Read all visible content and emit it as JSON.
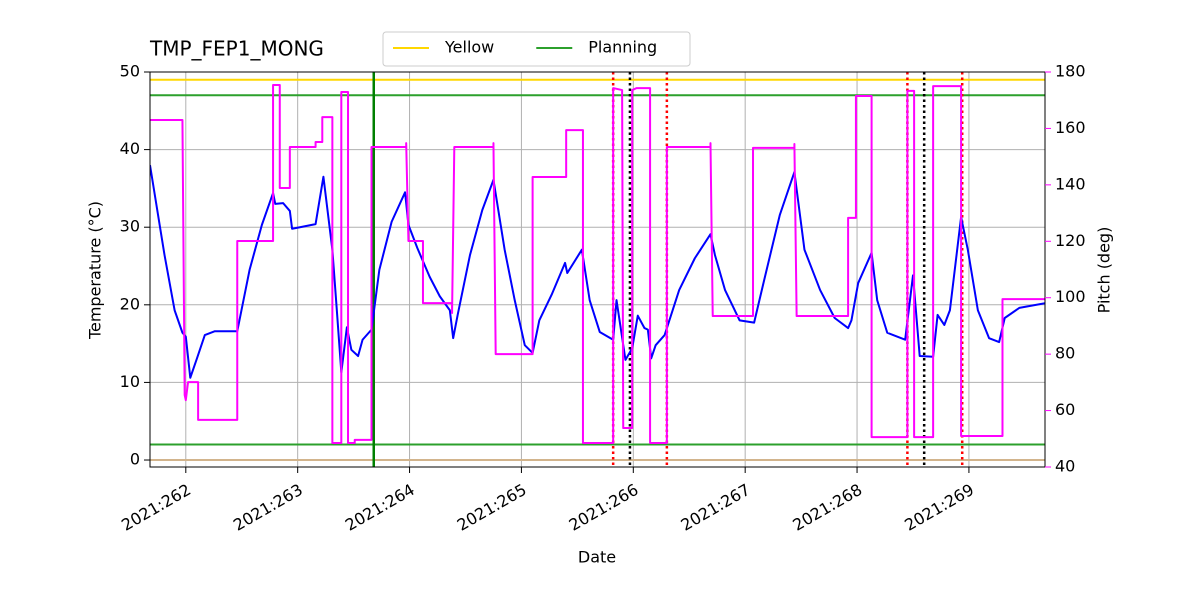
{
  "chart_data": {
    "type": "line",
    "title": "TMP_FEP1_MONG",
    "xlabel": "Date",
    "ylabel": "Temperature (°C)",
    "y2label": "Pitch (deg)",
    "y2color": "#ff00ff",
    "grid": true,
    "legend": "upper center",
    "xlim": [
      261.68,
      269.68
    ],
    "xticks": [
      {
        "value": 262,
        "label": "2021:262"
      },
      {
        "value": 263,
        "label": "2021:263"
      },
      {
        "value": 264,
        "label": "2021:264"
      },
      {
        "value": 265,
        "label": "2021:265"
      },
      {
        "value": 266,
        "label": "2021:266"
      },
      {
        "value": 267,
        "label": "2021:267"
      },
      {
        "value": 268,
        "label": "2021:268"
      },
      {
        "value": 269,
        "label": "2021:269"
      }
    ],
    "ylim": [
      -0.9,
      50
    ],
    "yticks": [
      0,
      10,
      20,
      30,
      40,
      50
    ],
    "y2lim": [
      40,
      180
    ],
    "y2ticks": [
      40,
      60,
      80,
      100,
      120,
      140,
      160,
      180
    ],
    "hlines": [
      {
        "value": 49,
        "color": "#ffd700",
        "name": "Yellow"
      },
      {
        "value": 47,
        "color": "#2ca02c",
        "name": "Planning"
      },
      {
        "value": 2,
        "color": "#2ca02c"
      },
      {
        "value": 0,
        "color": "#d2b48c"
      }
    ],
    "vlines": [
      {
        "x": 263.68,
        "color": "#008000",
        "style": "solid"
      },
      {
        "x": 265.82,
        "color": "#ff0000",
        "style": "dotted"
      },
      {
        "x": 265.97,
        "color": "#000000",
        "style": "dotted"
      },
      {
        "x": 266.3,
        "color": "#ff0000",
        "style": "dotted"
      },
      {
        "x": 268.45,
        "color": "#ff0000",
        "style": "dotted"
      },
      {
        "x": 268.6,
        "color": "#000000",
        "style": "dotted"
      },
      {
        "x": 268.94,
        "color": "#ff0000",
        "style": "dotted"
      }
    ],
    "series": [
      {
        "color": "#0000ff",
        "x": [
          261.68,
          261.81,
          261.9,
          261.97,
          262.0,
          262.04,
          262.1,
          262.17,
          262.26,
          262.46,
          262.57,
          262.68,
          262.78,
          262.8,
          262.87,
          262.93,
          262.95,
          263.02,
          263.16,
          263.23,
          263.31,
          263.35,
          263.39,
          263.44,
          263.48,
          263.54,
          263.58,
          263.66,
          263.73,
          263.84,
          263.96,
          263.99,
          264.07,
          264.18,
          264.27,
          264.36,
          264.39,
          264.43,
          264.54,
          264.65,
          264.75,
          264.85,
          264.94,
          265.03,
          265.1,
          265.16,
          265.27,
          265.39,
          265.41,
          265.54,
          265.61,
          265.7,
          265.82,
          265.85,
          265.93,
          265.99,
          266.04,
          266.1,
          266.13,
          266.16,
          266.2,
          266.28,
          266.41,
          266.55,
          266.69,
          266.73,
          266.82,
          266.95,
          267.08,
          267.17,
          267.31,
          267.44,
          267.53,
          267.67,
          267.8,
          267.92,
          267.95,
          268.01,
          268.13,
          268.18,
          268.27,
          268.43,
          268.5,
          268.56,
          268.68,
          268.72,
          268.78,
          268.83,
          268.93,
          268.99,
          269.08,
          269.18,
          269.27,
          269.32,
          269.45,
          269.68
        ],
        "values": [
          38.0,
          26.4,
          19.3,
          16.4,
          15.9,
          10.6,
          13.1,
          16.1,
          16.6,
          16.6,
          24.5,
          30.3,
          34.4,
          33.0,
          33.1,
          32.1,
          29.8,
          30.0,
          30.4,
          36.5,
          27.1,
          19.3,
          11.3,
          17.1,
          14.2,
          13.4,
          15.5,
          16.8,
          24.5,
          30.7,
          34.5,
          30.3,
          27.3,
          23.6,
          21.1,
          19.3,
          15.7,
          18.7,
          26.4,
          32.2,
          36.1,
          27.1,
          20.6,
          14.8,
          13.8,
          18.0,
          21.3,
          25.4,
          24.1,
          27.1,
          20.6,
          16.5,
          15.5,
          20.6,
          12.9,
          14.4,
          18.6,
          17.0,
          16.8,
          13.1,
          14.8,
          16.1,
          21.9,
          26.0,
          29.1,
          26.4,
          21.9,
          18.0,
          17.7,
          23.2,
          31.6,
          37.1,
          27.1,
          21.9,
          18.3,
          17.0,
          18.0,
          22.8,
          26.7,
          20.6,
          16.4,
          15.5,
          23.8,
          13.4,
          13.3,
          18.7,
          17.4,
          19.3,
          31.3,
          27.1,
          19.3,
          15.7,
          15.2,
          18.3,
          19.6,
          20.2
        ]
      },
      {
        "color": "#ff00ff",
        "axis": "y2",
        "x": [
          261.68,
          261.97,
          261.99,
          262.0,
          262.02,
          262.11,
          262.11,
          262.46,
          262.46,
          262.78,
          262.78,
          262.84,
          262.84,
          262.93,
          262.93,
          263.16,
          263.16,
          263.22,
          263.22,
          263.31,
          263.31,
          263.39,
          263.39,
          263.45,
          263.45,
          263.51,
          263.51,
          263.66,
          263.66,
          263.97,
          263.97,
          263.99,
          264.12,
          264.12,
          264.38,
          264.38,
          264.4,
          264.75,
          264.75,
          264.77,
          265.1,
          265.1,
          265.4,
          265.4,
          265.55,
          265.55,
          265.82,
          265.82,
          265.9,
          265.91,
          265.99,
          265.99,
          266.03,
          266.15,
          266.15,
          266.3,
          266.3,
          266.69,
          266.69,
          266.71,
          267.07,
          267.07,
          267.44,
          267.44,
          267.46,
          267.92,
          267.92,
          267.99,
          267.99,
          268.13,
          268.13,
          268.45,
          268.45,
          268.51,
          268.51,
          268.68,
          268.68,
          268.93,
          268.93,
          269.3,
          269.3,
          269.68
        ],
        "values": [
          163.0,
          163.0,
          65.5,
          63.7,
          70.1,
          70.1,
          56.7,
          56.7,
          120.1,
          120.1,
          175.4,
          175.4,
          138.9,
          138.9,
          153.4,
          153.4,
          155.2,
          155.2,
          164.0,
          164.0,
          48.5,
          48.5,
          172.9,
          172.9,
          48.5,
          48.5,
          49.6,
          49.6,
          153.4,
          153.4,
          154.8,
          120.1,
          120.1,
          98.1,
          98.1,
          94.6,
          153.4,
          153.4,
          154.8,
          80.0,
          80.0,
          142.8,
          142.8,
          159.4,
          159.4,
          48.5,
          48.5,
          174.3,
          173.6,
          53.8,
          53.8,
          173.6,
          174.3,
          174.3,
          48.5,
          48.5,
          153.4,
          153.4,
          154.8,
          93.5,
          93.5,
          153.1,
          153.1,
          154.5,
          93.5,
          93.5,
          128.3,
          128.3,
          171.5,
          171.5,
          50.6,
          50.6,
          173.3,
          173.3,
          50.6,
          50.6,
          175.0,
          175.0,
          51.0,
          51.0,
          99.5,
          99.5
        ]
      }
    ]
  }
}
